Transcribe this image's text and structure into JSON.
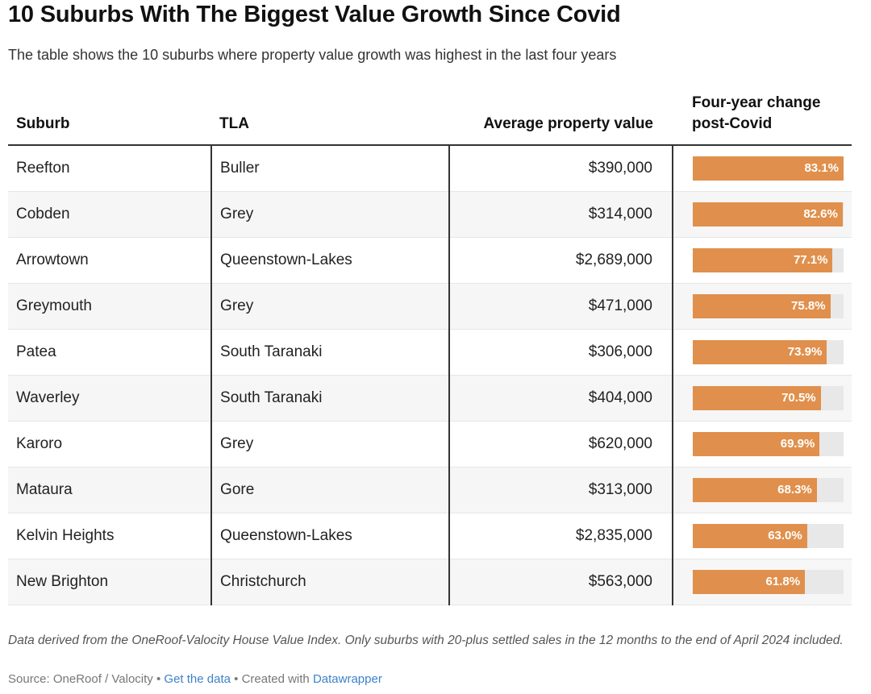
{
  "title": "10 Suburbs With The Biggest Value Growth Since Covid",
  "subtitle": "The table shows the 10 suburbs where property value growth was highest in the last four years",
  "columns": [
    "Suburb",
    "TLA",
    "Average property value",
    "Four-year change post-Covid"
  ],
  "colors": {
    "bar": "#e0904c",
    "track": "#e8e8e8",
    "link": "#3d82c9"
  },
  "chart_data": {
    "type": "table",
    "title": "10 Suburbs With The Biggest Value Growth Since Covid",
    "columns": [
      "Suburb",
      "TLA",
      "Average property value",
      "Four-year change post-Covid"
    ],
    "bar_column": "Four-year change post-Covid",
    "bar_range": [
      0,
      83.1
    ],
    "rows": [
      {
        "suburb": "Reefton",
        "tla": "Buller",
        "value": "$390,000",
        "change": 83.1,
        "change_label": "83.1%"
      },
      {
        "suburb": "Cobden",
        "tla": "Grey",
        "value": "$314,000",
        "change": 82.6,
        "change_label": "82.6%"
      },
      {
        "suburb": "Arrowtown",
        "tla": "Queenstown-Lakes",
        "value": "$2,689,000",
        "change": 77.1,
        "change_label": "77.1%"
      },
      {
        "suburb": "Greymouth",
        "tla": "Grey",
        "value": "$471,000",
        "change": 75.8,
        "change_label": "75.8%"
      },
      {
        "suburb": "Patea",
        "tla": "South Taranaki",
        "value": "$306,000",
        "change": 73.9,
        "change_label": "73.9%"
      },
      {
        "suburb": "Waverley",
        "tla": "South Taranaki",
        "value": "$404,000",
        "change": 70.5,
        "change_label": "70.5%"
      },
      {
        "suburb": "Karoro",
        "tla": "Grey",
        "value": "$620,000",
        "change": 69.9,
        "change_label": "69.9%"
      },
      {
        "suburb": "Mataura",
        "tla": "Gore",
        "value": "$313,000",
        "change": 68.3,
        "change_label": "68.3%"
      },
      {
        "suburb": "Kelvin Heights",
        "tla": "Queenstown-Lakes",
        "value": "$2,835,000",
        "change": 63.0,
        "change_label": "63.0%"
      },
      {
        "suburb": "New Brighton",
        "tla": "Christchurch",
        "value": "$563,000",
        "change": 61.8,
        "change_label": "61.8%"
      }
    ]
  },
  "notes": "Data derived from the OneRoof-Valocity House Value Index. Only suburbs with 20-plus settled sales in the 12 months to the end of April 2024 included.",
  "source": {
    "prefix": "Source: OneRoof / Valocity",
    "sep": " • ",
    "get_data": "Get the data",
    "created_with": "Created with ",
    "datawrapper": "Datawrapper"
  }
}
